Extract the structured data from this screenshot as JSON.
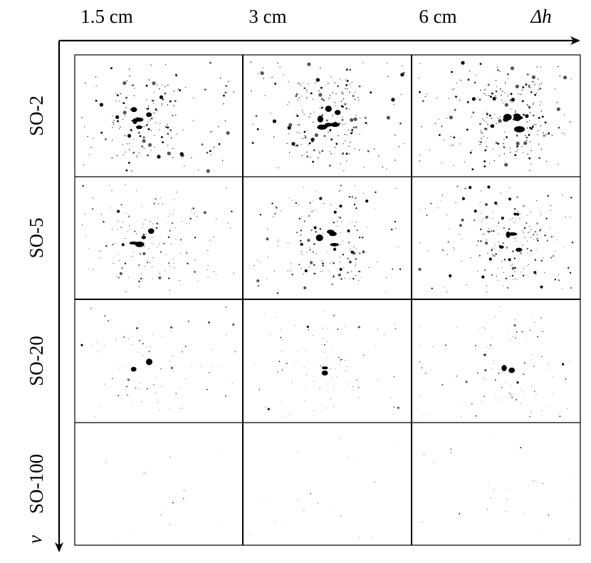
{
  "figure": {
    "columns": [
      "1.5 cm",
      "3 cm",
      "6 cm"
    ],
    "x_axis_label": "Δh",
    "rows": [
      "SO-2",
      "SO-5",
      "SO-20",
      "SO-100"
    ],
    "y_axis_label": "ν"
  }
}
